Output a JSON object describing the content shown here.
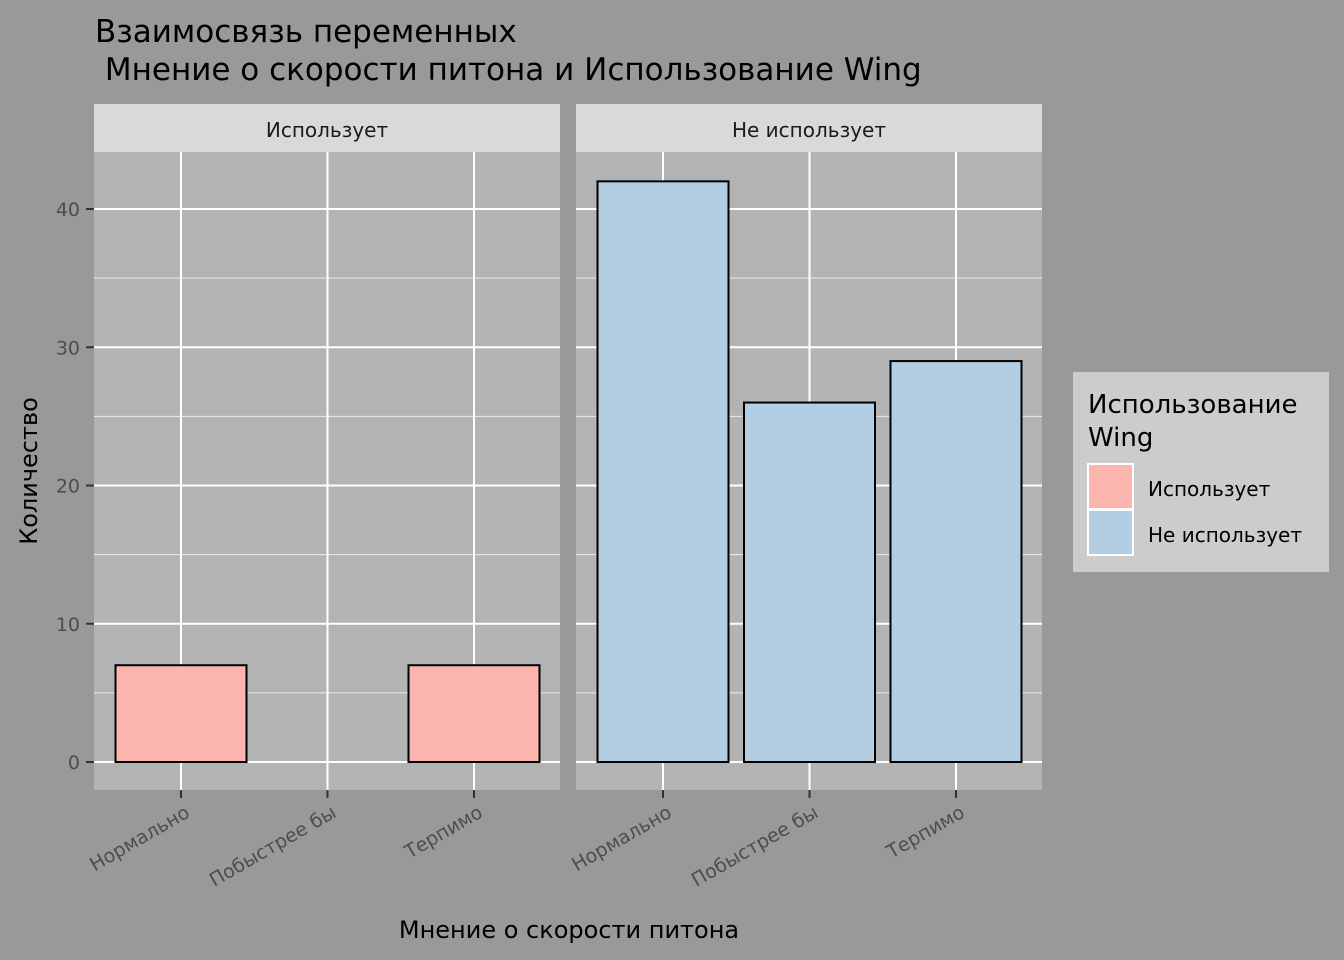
{
  "chart_data": {
    "type": "bar",
    "title_line1": "Взаимосвязь переменных",
    "title_line2": " Мнение о скорости питона и Использование Wing",
    "xlabel": "Мнение о скорости питона",
    "ylabel": "Количество",
    "categories": [
      "Нормально",
      "Побыстрее бы",
      "Терпимо"
    ],
    "ylim": [
      0,
      45
    ],
    "yticks": [
      0,
      10,
      20,
      30,
      40
    ],
    "legend": {
      "title_line1": "Использование",
      "title_line2": "Wing",
      "position": "right",
      "entries": [
        "Использует",
        "Не использует"
      ]
    },
    "facets": [
      {
        "name": "Использует",
        "color": "#fbb4ae",
        "values": [
          7,
          0,
          7
        ]
      },
      {
        "name": "Не использует",
        "color": "#b3cde3",
        "values": [
          42,
          26,
          29
        ]
      }
    ],
    "panel_background": "#b3b3b3",
    "strip_background": "#d9d9d9",
    "grid": true
  }
}
